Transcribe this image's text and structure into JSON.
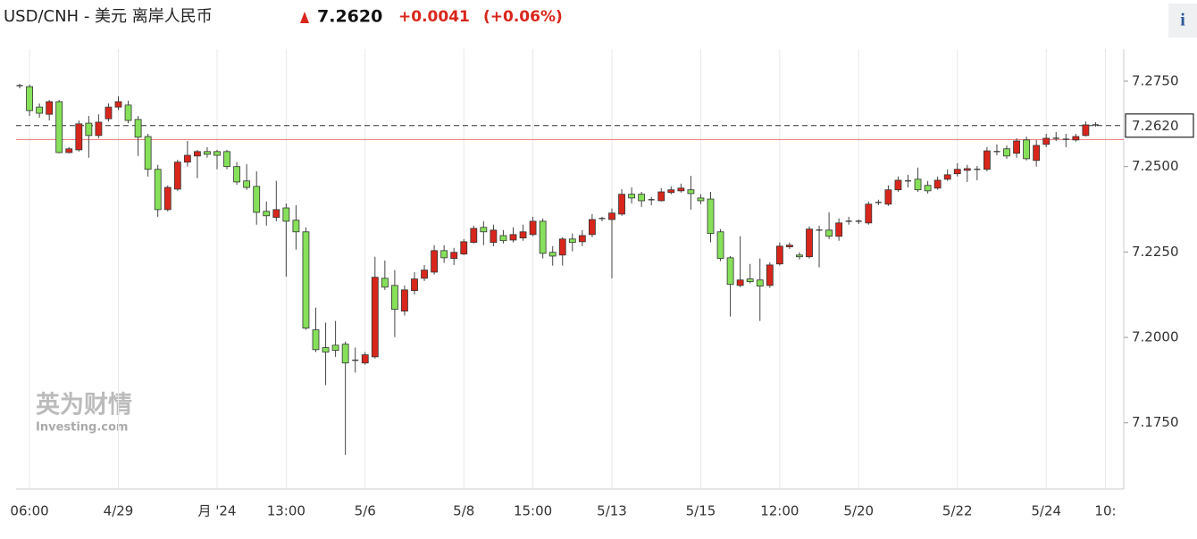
{
  "chart_data": {
    "type": "candlestick",
    "title": "USD/CNH - 美元 离岸人民币",
    "current_price": {
      "value": 7.262,
      "label": "7.2620"
    },
    "change": "+0.0041",
    "change_pct": "(+0.06%)",
    "info": "i",
    "watermark": "英为财情",
    "watermark_sub": "Investing.com",
    "up_color": "#d9261c",
    "down_color": "#86e05a",
    "reference_line": 7.2579,
    "reference_color": "#f08080",
    "grid": "vertical",
    "ylim": [
      7.1556,
      7.2844
    ],
    "yticks": [
      {
        "value": 7.275,
        "label": "7.2750"
      },
      {
        "value": 7.25,
        "label": "7.2500"
      },
      {
        "value": 7.225,
        "label": "7.2250"
      },
      {
        "value": 7.2,
        "label": "7.2000"
      },
      {
        "value": 7.175,
        "label": "7.1750"
      }
    ],
    "categories": [
      null,
      "06:00",
      null,
      null,
      null,
      null,
      null,
      null,
      null,
      null,
      "4/29",
      null,
      null,
      null,
      null,
      null,
      null,
      null,
      null,
      null,
      "月 '24",
      null,
      null,
      null,
      null,
      null,
      null,
      "13:00",
      null,
      null,
      null,
      null,
      null,
      null,
      null,
      "5/6",
      null,
      null,
      null,
      null,
      null,
      null,
      null,
      null,
      null,
      "5/8",
      null,
      null,
      null,
      null,
      null,
      null,
      "15:00",
      null,
      null,
      null,
      null,
      null,
      null,
      null,
      "5/13",
      null,
      null,
      null,
      null,
      null,
      null,
      null,
      null,
      "5/15",
      null,
      null,
      null,
      null,
      null,
      null,
      null,
      "12:00",
      null,
      null,
      null,
      null,
      null,
      null,
      null,
      "5/20",
      null,
      null,
      null,
      null,
      null,
      null,
      null,
      null,
      null,
      "5/22",
      null,
      null,
      null,
      null,
      null,
      null,
      null,
      null,
      "5/24",
      null,
      null,
      null,
      null,
      null,
      "10:"
    ],
    "open": [
      7.2737,
      7.2734,
      7.2674,
      7.2653,
      7.269,
      7.2541,
      7.2549,
      7.2627,
      7.2591,
      7.264,
      7.2674,
      7.268,
      7.2638,
      7.2588,
      7.2492,
      7.2374,
      7.2434,
      7.2513,
      7.2531,
      7.2544,
      7.2544,
      7.2544,
      7.25,
      7.2458,
      7.2442,
      7.2369,
      7.2351,
      7.2379,
      7.2343,
      7.2309,
      7.2022,
      7.197,
      7.1977,
      7.198,
      7.1933,
      7.1925,
      7.1943,
      7.2173,
      7.2152,
      7.2077,
      7.2137,
      7.2173,
      7.2191,
      7.2254,
      7.2231,
      7.2244,
      7.2278,
      7.2322,
      7.2278,
      7.2298,
      7.2285,
      7.2291,
      7.2301,
      7.234,
      7.2249,
      7.2241,
      7.2288,
      7.228,
      7.2301,
      7.2348,
      7.2345,
      7.2361,
      7.2419,
      7.2419,
      7.2403,
      7.24,
      7.2424,
      7.2429,
      7.2432,
      7.2408,
      7.2405,
      7.2309,
      7.2233,
      7.2152,
      7.2171,
      7.2168,
      7.2152,
      7.2215,
      7.2265,
      7.2241,
      7.2236,
      7.2314,
      7.2314,
      7.2296,
      7.234,
      7.234,
      7.2335,
      7.2395,
      7.239,
      7.2432,
      7.2458,
      7.2463,
      7.2445,
      7.2437,
      7.2463,
      7.2479,
      7.2489,
      7.2492,
      7.2492,
      7.2544,
      7.2552,
      7.2539,
      7.2578,
      7.2518,
      7.2565,
      7.2583,
      7.258,
      7.2578,
      7.2591,
      7.2622,
      null
    ],
    "high": [
      7.2742,
      7.274,
      7.2685,
      7.2695,
      7.2695,
      7.2557,
      7.2635,
      7.2648,
      7.2653,
      7.2685,
      7.2706,
      7.2693,
      7.2648,
      7.2596,
      7.2505,
      7.2445,
      7.252,
      7.2575,
      7.2549,
      7.2557,
      7.2549,
      7.2549,
      7.2513,
      7.2507,
      7.2486,
      7.2398,
      7.2458,
      7.2392,
      7.2387,
      7.2322,
      7.2087,
      7.2043,
      7.2048,
      7.1988,
      7.197,
      7.1957,
      7.2236,
      7.2225,
      7.2197,
      7.2152,
      7.2191,
      7.2212,
      7.227,
      7.227,
      7.2262,
      7.2288,
      7.2327,
      7.234,
      7.233,
      7.2314,
      7.2322,
      7.233,
      7.2353,
      7.2348,
      7.2267,
      7.2293,
      7.2304,
      7.2314,
      7.2361,
      7.2353,
      7.2377,
      7.2434,
      7.2439,
      7.2426,
      7.2411,
      7.2437,
      7.2442,
      7.245,
      7.2473,
      7.2419,
      7.2426,
      7.2317,
      7.2238,
      7.2296,
      7.2215,
      7.2231,
      7.222,
      7.2278,
      7.2278,
      7.2249,
      7.2325,
      7.2327,
      7.2366,
      7.2348,
      7.2353,
      7.2345,
      7.2398,
      7.2403,
      7.2445,
      7.2471,
      7.2476,
      7.2497,
      7.2458,
      7.2471,
      7.2492,
      7.251,
      7.2505,
      7.2502,
      7.2557,
      7.2565,
      7.2562,
      7.2583,
      7.2588,
      7.2578,
      7.2596,
      7.2601,
      7.2596,
      7.2596,
      7.2632,
      7.263,
      null
    ],
    "low": [
      7.2729,
      7.2648,
      7.2643,
      7.2635,
      7.2539,
      7.2539,
      7.2544,
      7.2526,
      7.2583,
      7.2632,
      7.2666,
      7.2627,
      7.2531,
      7.2471,
      7.2353,
      7.2369,
      7.2429,
      7.25,
      7.2466,
      7.2526,
      7.2492,
      7.2492,
      7.2447,
      7.2432,
      7.233,
      7.2327,
      7.234,
      7.2178,
      7.2257,
      7.2022,
      7.1957,
      7.186,
      7.1943,
      7.1656,
      7.1897,
      7.192,
      7.1938,
      7.2139,
      7.2001,
      7.2064,
      7.2126,
      7.2165,
      7.2184,
      7.2218,
      7.2212,
      7.2241,
      7.2275,
      7.227,
      7.2267,
      7.2275,
      7.2278,
      7.2283,
      7.2296,
      7.2231,
      7.221,
      7.221,
      7.2252,
      7.2267,
      7.2293,
      7.234,
      7.2173,
      7.2356,
      7.2392,
      7.2382,
      7.2387,
      7.2398,
      7.2419,
      7.2424,
      7.2374,
      7.239,
      7.2278,
      7.2223,
      7.2061,
      7.2147,
      7.2158,
      7.2048,
      7.2145,
      7.221,
      7.2259,
      7.2228,
      7.2231,
      7.2205,
      7.2288,
      7.2283,
      7.233,
      7.2332,
      7.233,
      7.2387,
      7.2385,
      7.2426,
      7.2439,
      7.2426,
      7.2421,
      7.2432,
      7.2458,
      7.2471,
      7.2455,
      7.246,
      7.2486,
      7.2533,
      7.2523,
      7.2526,
      7.2518,
      7.25,
      7.2557,
      7.2575,
      7.2557,
      7.2573,
      7.2588,
      7.2617,
      null
    ],
    "close": [
      7.2737,
      7.2664,
      7.2656,
      7.269,
      7.2541,
      7.2552,
      7.2625,
      7.2591,
      7.263,
      7.2674,
      7.269,
      7.2635,
      7.2586,
      7.2492,
      7.2374,
      7.2439,
      7.2513,
      7.2533,
      7.2544,
      7.2536,
      7.2533,
      7.25,
      7.2455,
      7.2439,
      7.2366,
      7.2356,
      7.2374,
      7.234,
      7.2309,
      7.2027,
      7.1964,
      7.1957,
      7.1962,
      7.1925,
      7.1933,
      7.1949,
      7.2176,
      7.2147,
      7.2082,
      7.2139,
      7.2171,
      7.2197,
      7.2254,
      7.2233,
      7.2249,
      7.228,
      7.2319,
      7.2309,
      7.2314,
      7.2283,
      7.2301,
      7.2309,
      7.234,
      7.2246,
      7.2238,
      7.2288,
      7.2278,
      7.2298,
      7.2345,
      7.2348,
      7.2364,
      7.2419,
      7.2408,
      7.24,
      7.2403,
      7.2426,
      7.2432,
      7.2437,
      7.2421,
      7.24,
      7.2304,
      7.2231,
      7.2155,
      7.2168,
      7.2163,
      7.215,
      7.2212,
      7.2267,
      7.227,
      7.2236,
      7.2317,
      7.2314,
      7.2296,
      7.2335,
      7.234,
      7.234,
      7.239,
      7.2395,
      7.2432,
      7.246,
      7.2458,
      7.2432,
      7.2429,
      7.246,
      7.2476,
      7.2492,
      7.2494,
      7.2492,
      7.2546,
      7.2544,
      7.2531,
      7.2575,
      7.2523,
      7.2562,
      7.2583,
      7.2583,
      7.258,
      7.2588,
      7.2622,
      7.262,
      null
    ]
  }
}
